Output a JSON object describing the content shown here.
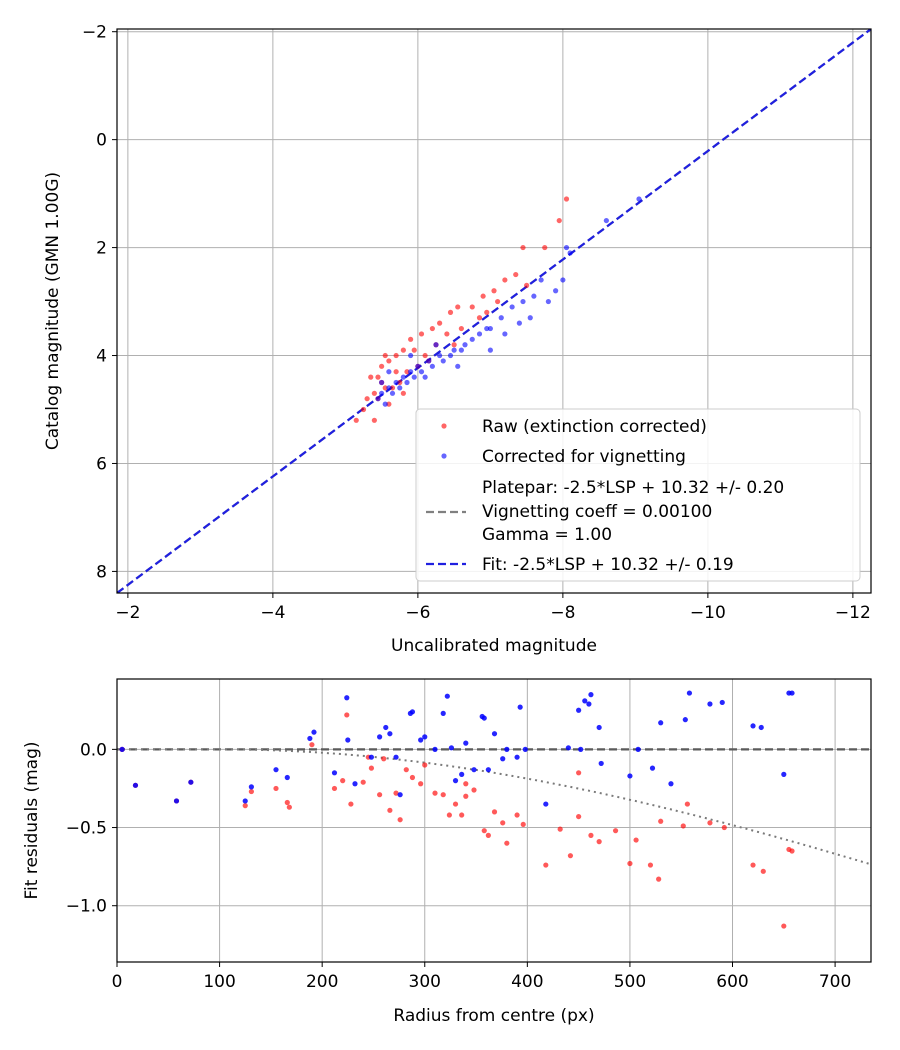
{
  "chart_data": [
    {
      "type": "scatter",
      "xlabel": "Uncalibrated magnitude",
      "ylabel": "Catalog magnitude (GMN 1.00G)",
      "xlim": [
        -1.85,
        -12.25
      ],
      "ylim": [
        8.4,
        -2.05
      ],
      "xticks": [
        -2,
        -4,
        -6,
        -8,
        -10,
        -12
      ],
      "yticks": [
        -2,
        0,
        2,
        4,
        6,
        8
      ],
      "grid": true,
      "legend_position": "lower-right",
      "legend": [
        {
          "label": "Raw (extinction corrected)",
          "kind": "dot",
          "color": "#ff0000"
        },
        {
          "label": "Corrected for vignetting",
          "kind": "dot",
          "color": "#0000ff"
        },
        {
          "label": "Platepar: -2.5*LSP + 10.32 +/- 0.20",
          "label2": "Vignetting coeff = 0.00100",
          "label3": "Gamma = 1.00",
          "kind": "dash",
          "color": "#808080"
        },
        {
          "label": "Fit: -2.5*LSP + 10.32 +/- 0.19",
          "kind": "dash",
          "color": "#2020e0"
        }
      ],
      "lines": [
        {
          "name": "Platepar",
          "x": [
            -1.85,
            -12.25
          ],
          "y": [
            8.4,
            -2.05
          ],
          "color": "#808080"
        },
        {
          "name": "Fit",
          "x": [
            -1.85,
            -12.25
          ],
          "y": [
            8.4,
            -2.05
          ],
          "color": "#2020e0"
        }
      ],
      "series": [
        {
          "name": "Raw (extinction corrected)",
          "color": "#ff0000",
          "points": [
            [
              -8.05,
              1.1
            ],
            [
              -7.95,
              1.5
            ],
            [
              -7.75,
              2.0
            ],
            [
              -7.45,
              2.0
            ],
            [
              -7.35,
              2.5
            ],
            [
              -7.2,
              2.6
            ],
            [
              -7.05,
              2.8
            ],
            [
              -6.9,
              2.9
            ],
            [
              -6.75,
              3.1
            ],
            [
              -6.55,
              3.1
            ],
            [
              -6.45,
              3.2
            ],
            [
              -6.3,
              3.4
            ],
            [
              -6.2,
              3.5
            ],
            [
              -6.05,
              3.6
            ],
            [
              -5.9,
              3.7
            ],
            [
              -5.8,
              3.9
            ],
            [
              -5.7,
              4.0
            ],
            [
              -5.6,
              4.1
            ],
            [
              -5.5,
              4.2
            ],
            [
              -5.45,
              4.4
            ],
            [
              -5.5,
              4.5
            ],
            [
              -5.55,
              4.6
            ],
            [
              -5.4,
              4.7
            ],
            [
              -5.3,
              4.8
            ],
            [
              -5.25,
              5.0
            ],
            [
              -5.15,
              5.2
            ],
            [
              -5.4,
              5.2
            ],
            [
              -5.6,
              4.9
            ],
            [
              -5.65,
              4.6
            ],
            [
              -5.75,
              4.5
            ],
            [
              -5.85,
              4.3
            ],
            [
              -6.0,
              4.2
            ],
            [
              -6.1,
              4.0
            ],
            [
              -6.25,
              3.8
            ],
            [
              -6.4,
              3.6
            ],
            [
              -6.6,
              3.5
            ],
            [
              -6.85,
              3.3
            ],
            [
              -7.1,
              3.0
            ],
            [
              -7.5,
              2.7
            ],
            [
              -5.35,
              4.4
            ],
            [
              -5.45,
              4.8
            ],
            [
              -5.7,
              4.3
            ],
            [
              -5.95,
              3.9
            ],
            [
              -6.15,
              4.1
            ],
            [
              -5.55,
              4.0
            ],
            [
              -5.8,
              4.7
            ],
            [
              -6.5,
              3.8
            ],
            [
              -6.95,
              3.2
            ]
          ]
        },
        {
          "name": "Corrected for vignetting",
          "color": "#0000ff",
          "points": [
            [
              -9.05,
              1.1
            ],
            [
              -8.6,
              1.5
            ],
            [
              -8.05,
              2.0
            ],
            [
              -8.1,
              2.1
            ],
            [
              -8.0,
              2.6
            ],
            [
              -7.7,
              2.6
            ],
            [
              -7.6,
              2.9
            ],
            [
              -7.45,
              3.0
            ],
            [
              -7.3,
              3.1
            ],
            [
              -7.15,
              3.3
            ],
            [
              -7.0,
              3.5
            ],
            [
              -6.85,
              3.6
            ],
            [
              -6.65,
              3.8
            ],
            [
              -6.5,
              3.9
            ],
            [
              -6.3,
              4.0
            ],
            [
              -6.15,
              4.1
            ],
            [
              -6.0,
              4.2
            ],
            [
              -5.9,
              4.3
            ],
            [
              -5.8,
              4.4
            ],
            [
              -5.7,
              4.5
            ],
            [
              -5.6,
              4.6
            ],
            [
              -5.5,
              4.7
            ],
            [
              -5.45,
              4.8
            ],
            [
              -5.55,
              4.9
            ],
            [
              -5.65,
              4.7
            ],
            [
              -5.75,
              4.6
            ],
            [
              -5.85,
              4.5
            ],
            [
              -5.95,
              4.4
            ],
            [
              -6.05,
              4.3
            ],
            [
              -6.2,
              4.2
            ],
            [
              -6.35,
              4.1
            ],
            [
              -6.45,
              4.0
            ],
            [
              -6.6,
              3.9
            ],
            [
              -6.75,
              3.7
            ],
            [
              -6.95,
              3.5
            ],
            [
              -7.2,
              3.6
            ],
            [
              -7.4,
              3.4
            ],
            [
              -7.55,
              3.3
            ],
            [
              -7.8,
              3.0
            ],
            [
              -7.9,
              2.8
            ],
            [
              -6.1,
              4.4
            ],
            [
              -5.9,
              4.0
            ],
            [
              -6.55,
              4.2
            ],
            [
              -5.6,
              4.3
            ],
            [
              -6.25,
              3.8
            ],
            [
              -7.0,
              3.9
            ],
            [
              -5.5,
              4.5
            ]
          ]
        }
      ]
    },
    {
      "type": "scatter",
      "xlabel": "Radius from centre (px)",
      "ylabel": "Fit residuals (mag)",
      "xlim": [
        0,
        735
      ],
      "ylim": [
        -1.36,
        0.45
      ],
      "xticks": [
        0,
        100,
        200,
        300,
        400,
        500,
        600,
        700
      ],
      "yticks": [
        "0.0",
        "−0.5",
        "−1.0"
      ],
      "ytick_values": [
        0.0,
        -0.5,
        -1.0
      ],
      "grid": true,
      "lines": [
        {
          "name": "zero",
          "style": "dashed",
          "color": "#5a5a5a",
          "x": [
            0,
            735
          ],
          "y": [
            0,
            0
          ]
        },
        {
          "name": "vignetting model",
          "style": "dotted",
          "color": "#7a7a7a",
          "coeff": 0.001,
          "x0": 100
        }
      ],
      "series": [
        {
          "name": "Raw",
          "color": "#ff0000",
          "points": [
            [
              5,
              0.0
            ],
            [
              18,
              -0.23
            ],
            [
              58,
              -0.33
            ],
            [
              72,
              -0.21
            ],
            [
              125,
              -0.36
            ],
            [
              131,
              -0.27
            ],
            [
              155,
              -0.25
            ],
            [
              166,
              -0.34
            ],
            [
              168,
              -0.37
            ],
            [
              190,
              0.03
            ],
            [
              212,
              -0.25
            ],
            [
              220,
              -0.2
            ],
            [
              224,
              0.22
            ],
            [
              228,
              -0.35
            ],
            [
              240,
              -0.21
            ],
            [
              248,
              -0.12
            ],
            [
              256,
              -0.29
            ],
            [
              260,
              -0.06
            ],
            [
              266,
              -0.39
            ],
            [
              272,
              -0.28
            ],
            [
              276,
              -0.45
            ],
            [
              282,
              -0.13
            ],
            [
              288,
              -0.18
            ],
            [
              296,
              -0.22
            ],
            [
              310,
              -0.28
            ],
            [
              318,
              -0.29
            ],
            [
              324,
              -0.42
            ],
            [
              330,
              -0.35
            ],
            [
              336,
              -0.42
            ],
            [
              340,
              -0.22
            ],
            [
              348,
              -0.26
            ],
            [
              358,
              -0.52
            ],
            [
              362,
              -0.55
            ],
            [
              368,
              -0.4
            ],
            [
              376,
              -0.47
            ],
            [
              380,
              -0.6
            ],
            [
              390,
              -0.42
            ],
            [
              396,
              -0.48
            ],
            [
              418,
              -0.74
            ],
            [
              432,
              -0.51
            ],
            [
              442,
              -0.68
            ],
            [
              450,
              -0.43
            ],
            [
              462,
              -0.55
            ],
            [
              470,
              -0.59
            ],
            [
              486,
              -0.52
            ],
            [
              500,
              -0.73
            ],
            [
              506,
              -0.58
            ],
            [
              520,
              -0.74
            ],
            [
              528,
              -0.83
            ],
            [
              530,
              -0.46
            ],
            [
              552,
              -0.49
            ],
            [
              556,
              -0.35
            ],
            [
              578,
              -0.47
            ],
            [
              592,
              -0.5
            ],
            [
              620,
              -0.74
            ],
            [
              630,
              -0.78
            ],
            [
              650,
              -1.13
            ],
            [
              655,
              -0.64
            ],
            [
              658,
              -0.65
            ],
            [
              340,
              -0.3
            ],
            [
              450,
              -0.15
            ],
            [
              245,
              -0.05
            ],
            [
              300,
              -0.1
            ]
          ]
        },
        {
          "name": "Corrected",
          "color": "#0000ff",
          "points": [
            [
              5,
              0.0
            ],
            [
              18,
              -0.23
            ],
            [
              58,
              -0.33
            ],
            [
              72,
              -0.21
            ],
            [
              125,
              -0.33
            ],
            [
              131,
              -0.24
            ],
            [
              155,
              -0.13
            ],
            [
              166,
              -0.18
            ],
            [
              188,
              0.07
            ],
            [
              192,
              0.11
            ],
            [
              212,
              -0.15
            ],
            [
              224,
              0.33
            ],
            [
              225,
              0.06
            ],
            [
              232,
              -0.22
            ],
            [
              248,
              -0.05
            ],
            [
              256,
              0.08
            ],
            [
              262,
              0.14
            ],
            [
              266,
              0.1
            ],
            [
              272,
              -0.05
            ],
            [
              276,
              -0.29
            ],
            [
              286,
              0.23
            ],
            [
              288,
              0.24
            ],
            [
              296,
              0.06
            ],
            [
              310,
              0.0
            ],
            [
              318,
              0.23
            ],
            [
              322,
              0.34
            ],
            [
              326,
              0.01
            ],
            [
              330,
              -0.2
            ],
            [
              336,
              -0.16
            ],
            [
              340,
              0.04
            ],
            [
              348,
              -0.13
            ],
            [
              356,
              0.21
            ],
            [
              358,
              0.2
            ],
            [
              362,
              -0.13
            ],
            [
              368,
              0.1
            ],
            [
              376,
              -0.06
            ],
            [
              380,
              0.0
            ],
            [
              390,
              -0.05
            ],
            [
              393,
              0.27
            ],
            [
              398,
              0.0
            ],
            [
              418,
              -0.35
            ],
            [
              440,
              0.01
            ],
            [
              450,
              0.25
            ],
            [
              452,
              0.0
            ],
            [
              456,
              0.31
            ],
            [
              462,
              0.35
            ],
            [
              470,
              0.14
            ],
            [
              472,
              -0.09
            ],
            [
              500,
              -0.17
            ],
            [
              508,
              0.0
            ],
            [
              522,
              -0.12
            ],
            [
              530,
              0.17
            ],
            [
              540,
              -0.22
            ],
            [
              554,
              0.19
            ],
            [
              558,
              0.36
            ],
            [
              578,
              0.29
            ],
            [
              590,
              0.3
            ],
            [
              620,
              0.15
            ],
            [
              628,
              0.14
            ],
            [
              650,
              -0.16
            ],
            [
              655,
              0.36
            ],
            [
              658,
              0.36
            ],
            [
              460,
              0.29
            ],
            [
              300,
              0.08
            ]
          ]
        }
      ]
    }
  ]
}
